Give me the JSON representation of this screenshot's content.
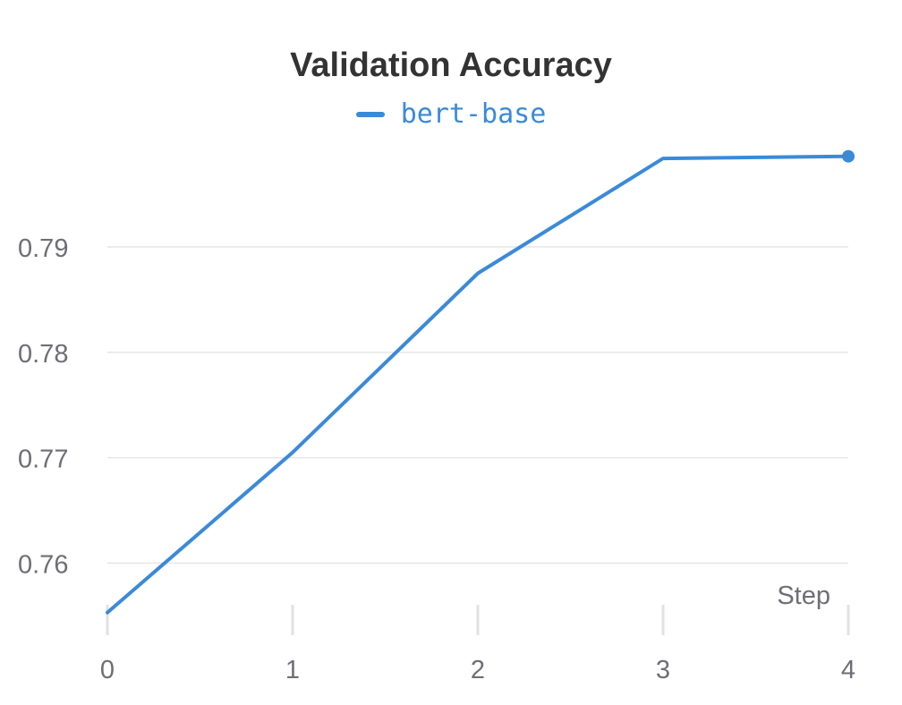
{
  "chart_data": {
    "type": "line",
    "title": "Validation Accuracy",
    "xlabel": "Step",
    "ylabel": "",
    "x": [
      0,
      1,
      2,
      3,
      4
    ],
    "xticks": [
      "0",
      "1",
      "2",
      "3",
      "4"
    ],
    "yticks": [
      "0.76",
      "0.77",
      "0.78",
      "0.79"
    ],
    "ytick_values": [
      0.76,
      0.77,
      0.78,
      0.79
    ],
    "xlim": [
      0,
      4
    ],
    "ylim": [
      0.754,
      0.8007
    ],
    "grid": true,
    "legend_position": "top",
    "series": [
      {
        "name": "bert-base",
        "color": "#3b8ad8",
        "values": [
          0.7553,
          0.7705,
          0.7875,
          0.7984,
          0.7986
        ]
      }
    ]
  }
}
